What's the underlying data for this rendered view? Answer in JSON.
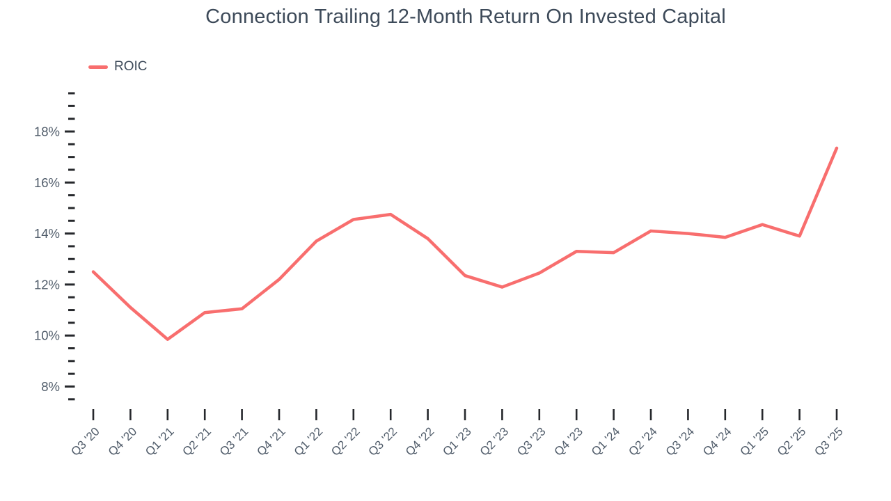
{
  "title": "Connection Trailing 12-Month Return On Invested Capital",
  "legend": {
    "label": "ROIC"
  },
  "colors": {
    "line": "#f86e6e",
    "title_text": "#3d4a59",
    "axis_label_text": "#4f5b69",
    "tick_mark": "#26282c"
  },
  "chart_data": {
    "type": "line",
    "title": "Connection Trailing 12-Month Return On Invested Capital",
    "categories": [
      "Q3 '20",
      "Q4 '20",
      "Q1 '21",
      "Q2 '21",
      "Q3 '21",
      "Q4 '21",
      "Q1 '22",
      "Q2 '22",
      "Q3 '22",
      "Q4 '22",
      "Q1 '23",
      "Q2 '23",
      "Q3 '23",
      "Q4 '23",
      "Q1 '24",
      "Q2 '24",
      "Q3 '24",
      "Q4 '24",
      "Q1 '25",
      "Q2 '25",
      "Q3 '25"
    ],
    "series": [
      {
        "name": "ROIC",
        "values": [
          12.5,
          11.1,
          9.85,
          10.9,
          11.05,
          12.2,
          13.7,
          14.55,
          14.75,
          13.8,
          12.35,
          11.9,
          12.45,
          13.3,
          13.25,
          14.1,
          14.0,
          13.85,
          14.35,
          13.9,
          17.35
        ]
      }
    ],
    "xlabel": "",
    "ylabel": "",
    "ylim": [
      7.5,
      19.5
    ],
    "y_major_ticks": [
      8,
      10,
      12,
      14,
      16,
      18
    ],
    "y_tick_suffix": "%",
    "y_minor_step": 0.5,
    "grid": false,
    "legend_position": "top-left"
  }
}
